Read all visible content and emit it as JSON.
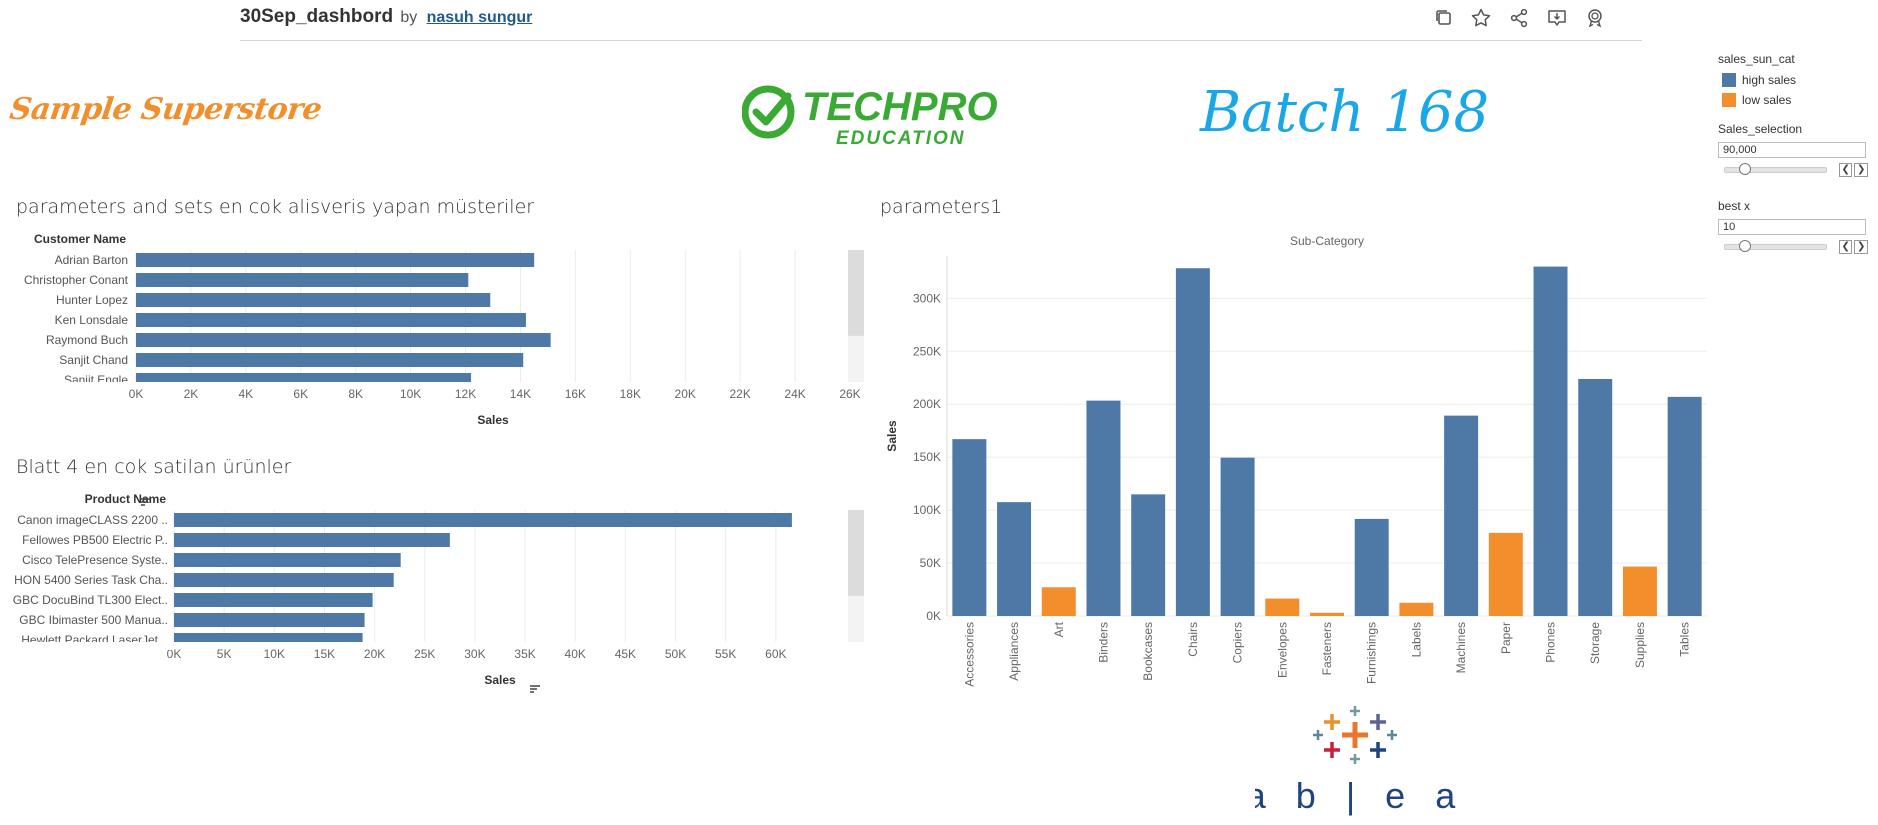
{
  "header": {
    "title": "30Sep_dashbord",
    "by": "by",
    "author": "nasuh sungur",
    "icons": [
      "duplicate-icon",
      "favorite-star-icon",
      "share-icon",
      "download-icon",
      "badge-icon"
    ]
  },
  "banner": {
    "left_text": "Sample Superstore",
    "logo_main": "TECHPRO",
    "logo_sub": "EDUCATION",
    "right_text": "Batch 168"
  },
  "colors": {
    "high": "#4e79a7",
    "low": "#f28e2b",
    "brand_green": "#3aaa35",
    "batch_blue": "#1aa7e8"
  },
  "legend": {
    "title": "sales_sun_cat",
    "items": [
      {
        "label": "high sales",
        "color": "#4e79a7"
      },
      {
        "label": "low sales",
        "color": "#f28e2b"
      }
    ],
    "sales_selection": {
      "label": "Sales_selection",
      "value": "90,000"
    },
    "best_x": {
      "label": "best x",
      "value": "10"
    }
  },
  "chart_data": [
    {
      "type": "bar",
      "orientation": "horizontal",
      "title": "parameters and sets  en cok alisveris yapan müsteriler",
      "row_header": "Customer Name",
      "xlabel": "Sales",
      "xlim": [
        0,
        26000
      ],
      "xticks": [
        "0K",
        "2K",
        "4K",
        "6K",
        "8K",
        "10K",
        "12K",
        "14K",
        "16K",
        "18K",
        "20K",
        "22K",
        "24K",
        "26K"
      ],
      "categories": [
        "Adrian Barton",
        "Christopher Conant",
        "Hunter Lopez",
        "Ken Lonsdale",
        "Raymond Buch",
        "Sanjit Chand",
        "Sanjit Engle"
      ],
      "values": [
        14500,
        12100,
        12900,
        14200,
        15100,
        14100,
        12200
      ]
    },
    {
      "type": "bar",
      "orientation": "horizontal",
      "title": "Blatt 4 en cok satilan ürünler",
      "row_header": "Product Name",
      "xlabel": "Sales",
      "xlim": [
        0,
        65000
      ],
      "xticks": [
        "0K",
        "5K",
        "10K",
        "15K",
        "20K",
        "25K",
        "30K",
        "35K",
        "40K",
        "45K",
        "50K",
        "55K",
        "60K"
      ],
      "categories": [
        "Canon imageCLASS 2200 ..",
        "Fellowes PB500 Electric P..",
        "Cisco TelePresence Syste..",
        "HON 5400 Series Task Cha..",
        "GBC DocuBind TL300 Elect..",
        "GBC Ibimaster 500 Manua..",
        "Hewlett Packard LaserJet .."
      ],
      "values": [
        61600,
        27500,
        22600,
        21900,
        19800,
        19000,
        18800
      ]
    },
    {
      "type": "bar",
      "title": "parameters1",
      "column_header": "Sub-Category",
      "ylabel": "Sales",
      "ylim": [
        0,
        340000
      ],
      "yticks": [
        "0K",
        "50K",
        "100K",
        "150K",
        "200K",
        "250K",
        "300K"
      ],
      "categories": [
        "Accessories",
        "Appliances",
        "Art",
        "Binders",
        "Bookcases",
        "Chairs",
        "Copiers",
        "Envelopes",
        "Fasteners",
        "Furnishings",
        "Labels",
        "Machines",
        "Paper",
        "Phones",
        "Storage",
        "Supplies",
        "Tables"
      ],
      "values": [
        167026,
        107532,
        27119,
        203413,
        114880,
        328449,
        149528,
        16476,
        3024,
        91705,
        12486,
        189239,
        78479,
        330007,
        223844,
        46674,
        206966
      ],
      "groups": [
        "high",
        "high",
        "low",
        "high",
        "high",
        "high",
        "high",
        "low",
        "low",
        "high",
        "low",
        "high",
        "low",
        "high",
        "high",
        "low",
        "high"
      ]
    }
  ],
  "footer_logo": "+ a b | e a u"
}
